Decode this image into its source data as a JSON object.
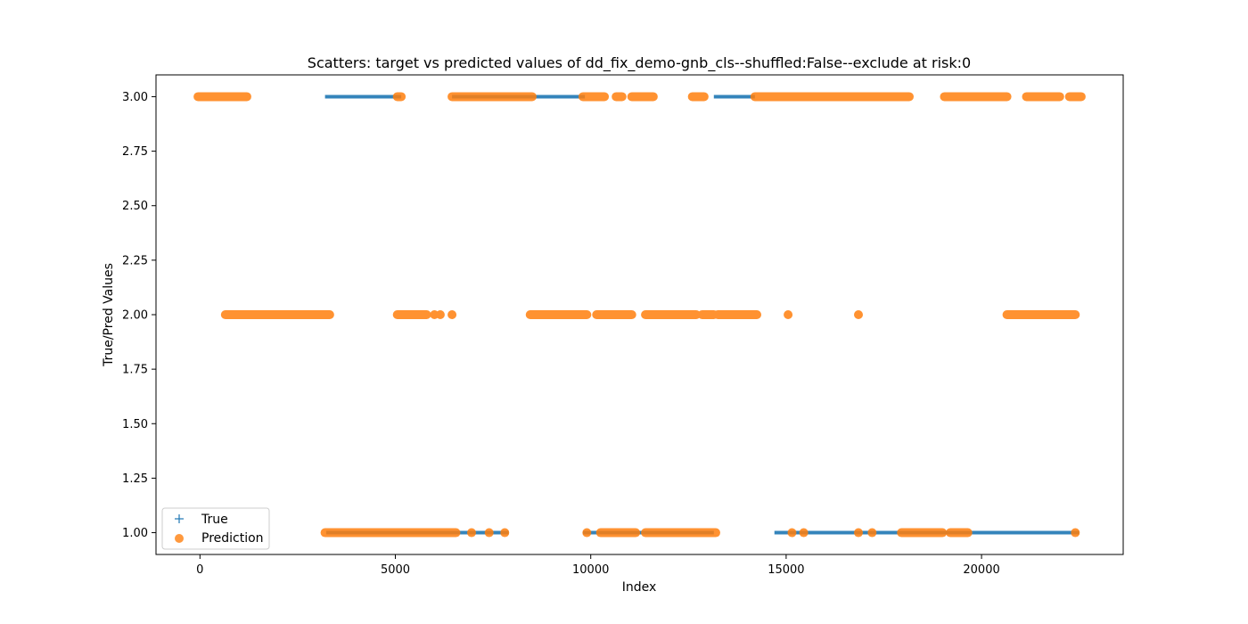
{
  "chart_data": {
    "type": "scatter",
    "title": "Scatters: target vs predicted values of dd_fix_demo-gnb_cls--shuffled:False--exclude at risk:0",
    "xlabel": "Index",
    "ylabel": "True/Pred Values",
    "xlim": [
      -1125,
      23625
    ],
    "ylim": [
      0.9,
      3.1
    ],
    "xticks": [
      0,
      5000,
      10000,
      15000,
      20000
    ],
    "xtick_labels": [
      "0",
      "5000",
      "10000",
      "15000",
      "20000"
    ],
    "yticks": [
      1.0,
      1.25,
      1.5,
      1.75,
      2.0,
      2.25,
      2.5,
      2.75,
      3.0
    ],
    "ytick_labels": [
      "1.00",
      "1.25",
      "1.50",
      "1.75",
      "2.00",
      "2.25",
      "2.50",
      "2.75",
      "3.00"
    ],
    "grid": false,
    "legend_position": "lower-left",
    "series": [
      {
        "name": "True",
        "marker": "+",
        "color": "#1f77b4",
        "segments": [
          {
            "y": 3,
            "x_start": 3200,
            "x_end": 5150
          },
          {
            "y": 3,
            "x_start": 6450,
            "x_end": 9850
          },
          {
            "y": 3,
            "x_start": 13150,
            "x_end": 14200
          },
          {
            "y": 1,
            "x_start": 3230,
            "x_end": 7900
          },
          {
            "y": 1,
            "x_start": 9800,
            "x_end": 13150
          },
          {
            "y": 1,
            "x_start": 14700,
            "x_end": 22500
          }
        ]
      },
      {
        "name": "Prediction",
        "marker": "o",
        "color": "#ff7f0e",
        "segments": [
          {
            "y": 3,
            "x_start": -50,
            "x_end": 1200
          },
          {
            "y": 3,
            "x_start": 5050,
            "x_end": 5150
          },
          {
            "y": 3,
            "x_start": 6450,
            "x_end": 8500
          },
          {
            "y": 3,
            "x_start": 9800,
            "x_end": 10350
          },
          {
            "y": 3,
            "x_start": 10650,
            "x_end": 10800
          },
          {
            "y": 3,
            "x_start": 11050,
            "x_end": 11600
          },
          {
            "y": 3,
            "x_start": 12600,
            "x_end": 12900
          },
          {
            "y": 3,
            "x_start": 14200,
            "x_end": 18150
          },
          {
            "y": 3,
            "x_start": 19050,
            "x_end": 20650
          },
          {
            "y": 3,
            "x_start": 21150,
            "x_end": 22000
          },
          {
            "y": 3,
            "x_start": 22250,
            "x_end": 22550
          },
          {
            "y": 2,
            "x_start": 650,
            "x_end": 3320
          },
          {
            "y": 2,
            "x_start": 5050,
            "x_end": 5800
          },
          {
            "y": 2,
            "x_start": 8450,
            "x_end": 9900
          },
          {
            "y": 2,
            "x_start": 10150,
            "x_end": 11050
          },
          {
            "y": 2,
            "x_start": 11400,
            "x_end": 12700
          },
          {
            "y": 2,
            "x_start": 12850,
            "x_end": 13150
          },
          {
            "y": 2,
            "x_start": 13250,
            "x_end": 14250
          },
          {
            "y": 2,
            "x_start": 20650,
            "x_end": 22400
          },
          {
            "y": 1,
            "x_start": 3200,
            "x_end": 6550
          },
          {
            "y": 1,
            "x_start": 10250,
            "x_end": 11150
          },
          {
            "y": 1,
            "x_start": 11400,
            "x_end": 13200
          },
          {
            "y": 1,
            "x_start": 17950,
            "x_end": 19000
          },
          {
            "y": 1,
            "x_start": 19200,
            "x_end": 19650
          }
        ],
        "points": [
          {
            "x": 6000,
            "y": 2
          },
          {
            "x": 6150,
            "y": 2
          },
          {
            "x": 6450,
            "y": 2
          },
          {
            "x": 15050,
            "y": 2
          },
          {
            "x": 16850,
            "y": 2
          },
          {
            "x": 6950,
            "y": 1
          },
          {
            "x": 7400,
            "y": 1
          },
          {
            "x": 7800,
            "y": 1
          },
          {
            "x": 9900,
            "y": 1
          },
          {
            "x": 15150,
            "y": 1
          },
          {
            "x": 15450,
            "y": 1
          },
          {
            "x": 16850,
            "y": 1
          },
          {
            "x": 17200,
            "y": 1
          },
          {
            "x": 22400,
            "y": 1
          }
        ]
      }
    ]
  }
}
